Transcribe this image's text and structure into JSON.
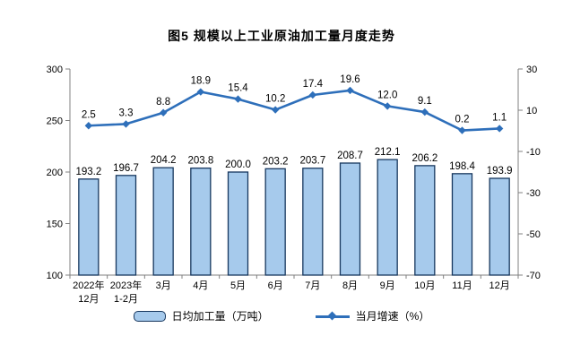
{
  "title": "图5 规模以上工业原油加工量月度走势",
  "colors": {
    "bar_fill": "#A6CAEC",
    "bar_border": "#17375E",
    "line": "#2E6FBA",
    "axis": "#808080",
    "label_text": "#000000"
  },
  "chart_data": {
    "type": "bar",
    "subtype": "bar+line dual-axis combo",
    "title": "图5 规模以上工业原油加工量月度走势",
    "categories": [
      [
        "2022年",
        "12月"
      ],
      [
        "2023年",
        "1-2月"
      ],
      [
        "3月"
      ],
      [
        "4月"
      ],
      [
        "5月"
      ],
      [
        "6月"
      ],
      [
        "7月"
      ],
      [
        "8月"
      ],
      [
        "9月"
      ],
      [
        "10月"
      ],
      [
        "11月"
      ],
      [
        "12月"
      ]
    ],
    "series": [
      {
        "name": "日均加工量（万吨）",
        "type": "bar",
        "axis": "left",
        "values": [
          193.2,
          196.7,
          204.2,
          203.8,
          200.0,
          203.2,
          203.7,
          208.7,
          212.1,
          206.2,
          198.4,
          193.9
        ]
      },
      {
        "name": "当月增速（%）",
        "type": "line",
        "axis": "right",
        "values": [
          2.5,
          3.3,
          8.8,
          18.9,
          15.4,
          10.2,
          17.4,
          19.6,
          12.0,
          9.1,
          0.2,
          1.1
        ]
      }
    ],
    "left_axis": {
      "min": 100,
      "max": 300,
      "ticks": [
        100,
        150,
        200,
        250,
        300
      ]
    },
    "right_axis": {
      "min": -70,
      "max": 30,
      "ticks": [
        -70,
        -50,
        -30,
        -10,
        10,
        30
      ]
    },
    "grid": false,
    "data_labels": true,
    "legend_position": "bottom"
  },
  "legend": {
    "bar_label": "日均加工量（万吨）",
    "line_label": "当月增速（%）"
  }
}
